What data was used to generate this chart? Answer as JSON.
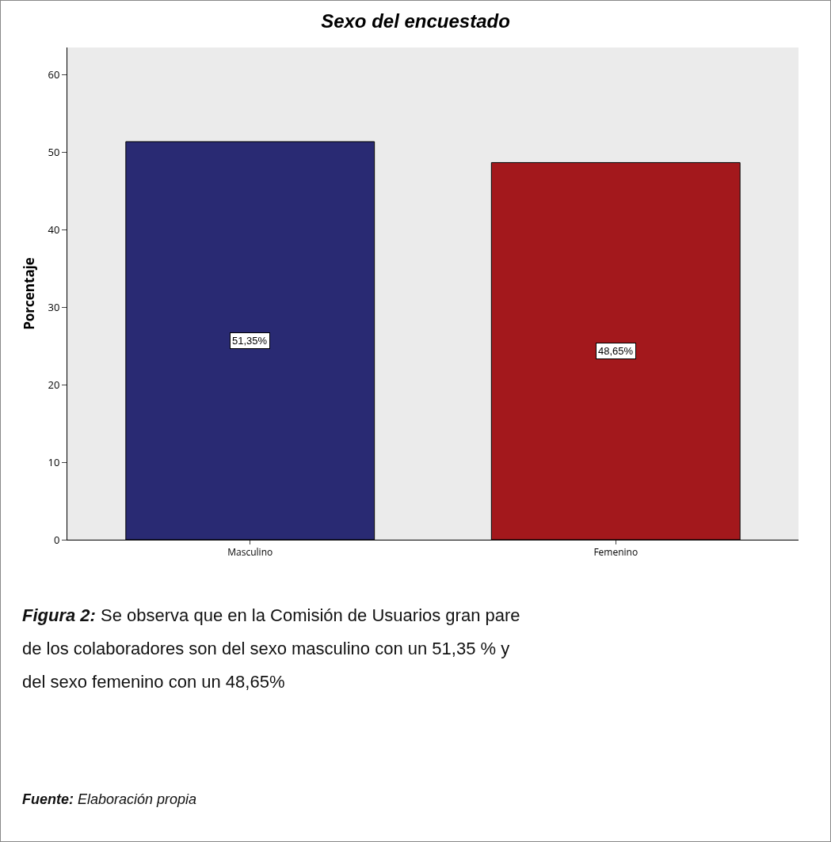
{
  "chart_data": {
    "type": "bar",
    "title": "Sexo del encuestado",
    "ylabel": "Porcentaje",
    "categories": [
      "Masculino",
      "Femenino"
    ],
    "values": [
      51.35,
      48.65
    ],
    "colors": [
      "#292a73",
      "#a3181c"
    ],
    "value_labels": [
      "51,35%",
      "48,65%"
    ],
    "ylim": [
      0,
      63.5
    ],
    "yticks": [
      0,
      10,
      20,
      30,
      40,
      50,
      60
    ],
    "grid": false,
    "annotations": [
      "Figura 2: Se observa que en la Comisión de Usuarios gran pare de los colaboradores son del sexo masculino con un 51,35 % y del sexo femenino con un 48,65%",
      "Fuente: Elaboración propia"
    ]
  }
}
